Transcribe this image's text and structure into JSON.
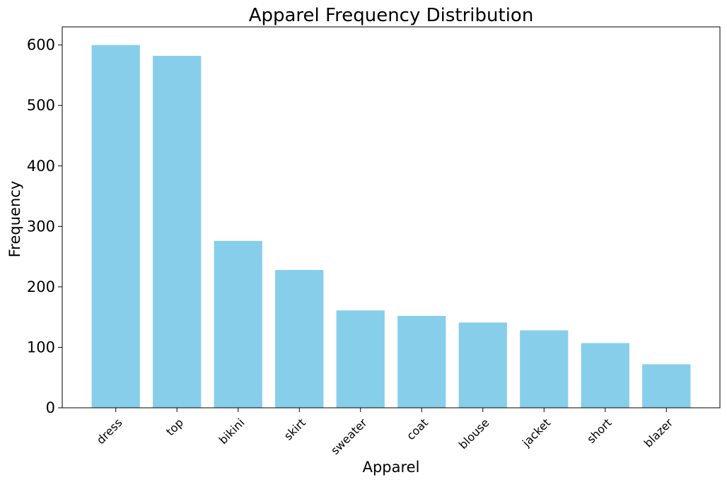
{
  "chart_data": {
    "type": "bar",
    "title": "Apparel Frequency Distribution",
    "xlabel": "Apparel",
    "ylabel": "Frequency",
    "categories": [
      "dress",
      "top",
      "bikini",
      "skirt",
      "sweater",
      "coat",
      "blouse",
      "jacket",
      "short",
      "blazer"
    ],
    "values": [
      600,
      582,
      276,
      228,
      161,
      152,
      141,
      128,
      107,
      72
    ],
    "ylim": [
      0,
      630
    ],
    "yticks": [
      0,
      100,
      200,
      300,
      400,
      500,
      600
    ],
    "bar_color": "#87CEEB",
    "grid": false,
    "legend": false
  }
}
